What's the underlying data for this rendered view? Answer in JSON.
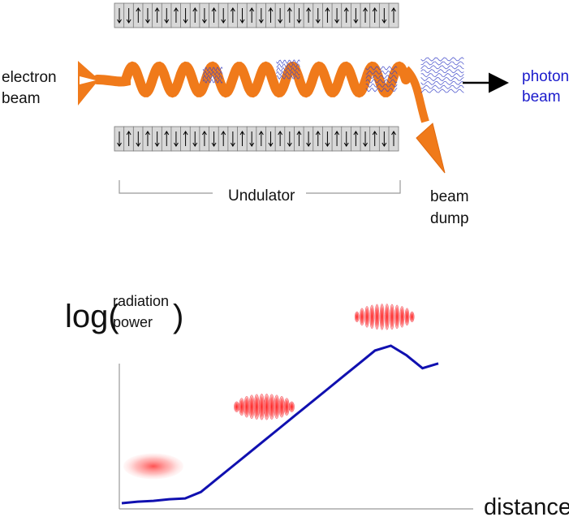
{
  "labels": {
    "electron_beam": [
      "electron",
      "beam"
    ],
    "photon_beam": [
      "photon",
      "beam"
    ],
    "undulator": "Undulator",
    "beam_dump": [
      "beam",
      "dump"
    ],
    "y_axis_prefix": "log(",
    "y_axis_top": "radiation",
    "y_axis_bottom": "power",
    "y_axis_suffix": ")",
    "x_axis": "distance"
  },
  "magnets": {
    "top": [
      "down",
      "down",
      "up",
      "down",
      "up",
      "down",
      "up",
      "down",
      "up",
      "down",
      "up",
      "down",
      "up",
      "down",
      "up",
      "down",
      "up",
      "down",
      "up",
      "down",
      "up",
      "down",
      "up",
      "down",
      "up",
      "down",
      "up",
      "up",
      "down",
      "up"
    ],
    "bottom": [
      "down",
      "up",
      "down",
      "up",
      "down",
      "up",
      "down",
      "up",
      "down",
      "up",
      "down",
      "up",
      "down",
      "up",
      "down",
      "up",
      "down",
      "up",
      "down",
      "up",
      "down",
      "up",
      "down",
      "up",
      "down",
      "up",
      "down",
      "up",
      "down",
      "up"
    ]
  },
  "colors": {
    "electron_beam": "#f07a1a",
    "photon_label": "#1a1acc",
    "curve": "#1010b0",
    "bunch": "#ff2a2a",
    "axis": "#999999",
    "magnet_fill": "#d8d8d8",
    "arrow": "#000000"
  },
  "chart_data": {
    "type": "line",
    "title": "",
    "xlabel": "distance",
    "ylabel": "log(radiation power)",
    "x": [
      0,
      0.05,
      0.1,
      0.15,
      0.2,
      0.25,
      0.3,
      0.35,
      0.4,
      0.45,
      0.5,
      0.55,
      0.6,
      0.65,
      0.7,
      0.75,
      0.8,
      0.85,
      0.9,
      0.95,
      1.0
    ],
    "y": [
      0.02,
      0.03,
      0.035,
      0.045,
      0.05,
      0.09,
      0.17,
      0.25,
      0.33,
      0.41,
      0.49,
      0.57,
      0.65,
      0.73,
      0.81,
      0.89,
      0.97,
      1.0,
      0.94,
      0.86,
      0.89
    ],
    "bunches": [
      {
        "x": 0.1,
        "y": 0.25,
        "stage": "uniform"
      },
      {
        "x": 0.45,
        "y": 0.62,
        "stage": "partially-bunched"
      },
      {
        "x": 0.83,
        "y": 1.18,
        "stage": "fully-bunched"
      }
    ]
  }
}
